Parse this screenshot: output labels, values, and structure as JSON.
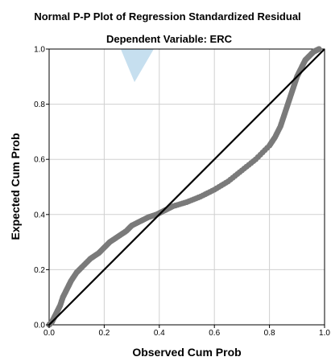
{
  "chart_data": {
    "type": "scatter",
    "title": "Normal P-P Plot of Regression Standardized Residual",
    "subtitle": "Dependent Variable: ERC",
    "xlabel": "Observed Cum Prob",
    "ylabel": "Expected Cum Prob",
    "xlim": [
      0.0,
      1.0
    ],
    "ylim": [
      0.0,
      1.0
    ],
    "x_ticks": [
      "0.0",
      "0.2",
      "0.4",
      "0.6",
      "0.8",
      "1.0"
    ],
    "y_ticks": [
      "0.0",
      "0.2",
      "0.4",
      "0.6",
      "0.8",
      "1.0"
    ],
    "grid": true,
    "point_color": "#7a7a7a",
    "reference_line_color": "#000000",
    "grid_color": "#d0d0d0",
    "overlay_color": "#bcd9ec",
    "reference_line": {
      "x": [
        0.0,
        1.0
      ],
      "y": [
        0.0,
        1.0
      ]
    },
    "series": [
      {
        "x": [
          0.0,
          0.01,
          0.02,
          0.03,
          0.04,
          0.05,
          0.06,
          0.07,
          0.08,
          0.1,
          0.12,
          0.15,
          0.18,
          0.2,
          0.22,
          0.25,
          0.28,
          0.3,
          0.33,
          0.36,
          0.39,
          0.42,
          0.45,
          0.5,
          0.55,
          0.6,
          0.65,
          0.7,
          0.75,
          0.8,
          0.82,
          0.84,
          0.85,
          0.86,
          0.87,
          0.88,
          0.89,
          0.9,
          0.91,
          0.92,
          0.93,
          0.94,
          0.95,
          0.96,
          0.97,
          0.98
        ],
        "y": [
          0.0,
          0.01,
          0.03,
          0.05,
          0.07,
          0.1,
          0.12,
          0.14,
          0.16,
          0.19,
          0.21,
          0.24,
          0.26,
          0.28,
          0.3,
          0.32,
          0.34,
          0.36,
          0.375,
          0.39,
          0.4,
          0.415,
          0.43,
          0.445,
          0.465,
          0.49,
          0.52,
          0.56,
          0.6,
          0.65,
          0.68,
          0.72,
          0.75,
          0.78,
          0.81,
          0.84,
          0.87,
          0.9,
          0.92,
          0.94,
          0.96,
          0.97,
          0.98,
          0.99,
          0.995,
          1.0
        ]
      }
    ]
  }
}
